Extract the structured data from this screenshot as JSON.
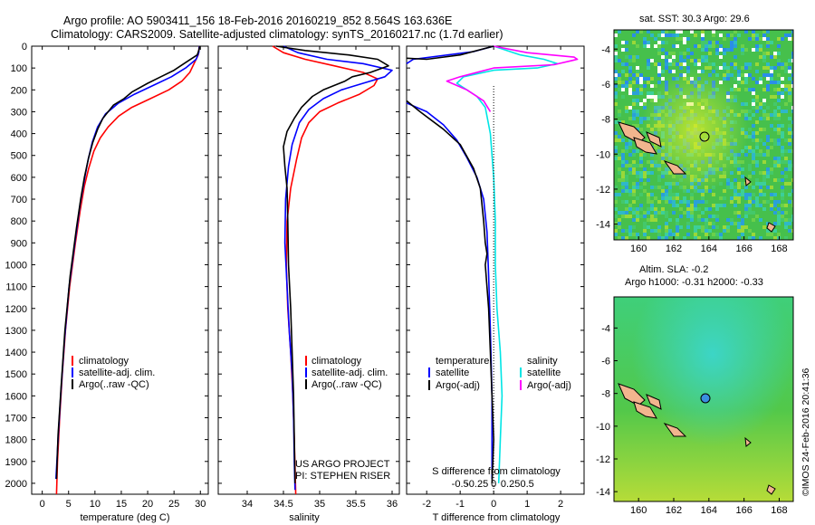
{
  "header": {
    "line1": "Argo profile: AO 5903411_156 18-Feb-2016 20160219_852 8.564S 163.636E",
    "line2": "Climatology: CARS2009. Satellite-adjusted climatology: synTS_20160217.nc (1.7d earlier)"
  },
  "colors": {
    "climatology": "#ff0000",
    "satellite": "#0000ff",
    "argo": "#000000",
    "sat_salinity": "#00e5e5",
    "argo_salinity": "#ff00ff"
  },
  "depth_axis": {
    "ylim": [
      0,
      2050
    ],
    "ticks": [
      "0",
      "100",
      "200",
      "300",
      "400",
      "500",
      "600",
      "700",
      "800",
      "900",
      "1000",
      "1100",
      "1200",
      "1300",
      "1400",
      "1500",
      "1600",
      "1700",
      "1800",
      "1900",
      "2000"
    ]
  },
  "credits": {
    "project": "US ARGO PROJECT",
    "pi": "PI: STEPHEN RISER",
    "imos": "©IMOS 24-Feb-2016 20:41:36"
  },
  "chart_data": [
    {
      "type": "line",
      "xlabel": "temperature (deg C)",
      "xlim": [
        -2,
        31.5
      ],
      "xticks": [
        "0",
        "5",
        "10",
        "15",
        "20",
        "25",
        "30"
      ],
      "legend": [
        "climatology",
        "satellite-adj. clim.",
        "Argo(..raw -QC)"
      ],
      "series": [
        {
          "name": "climatology",
          "color": "#ff0000",
          "points": [
            [
              29.8,
              0
            ],
            [
              29.6,
              40
            ],
            [
              29.0,
              70
            ],
            [
              28.0,
              120
            ],
            [
              26.5,
              160
            ],
            [
              24.0,
              200
            ],
            [
              20.5,
              240
            ],
            [
              17.0,
              280
            ],
            [
              14.5,
              320
            ],
            [
              12.5,
              370
            ],
            [
              11.0,
              420
            ],
            [
              9.8,
              480
            ],
            [
              8.8,
              560
            ],
            [
              8.0,
              640
            ],
            [
              7.2,
              750
            ],
            [
              6.3,
              900
            ],
            [
              5.2,
              1100
            ],
            [
              4.4,
              1300
            ],
            [
              3.8,
              1500
            ],
            [
              3.3,
              1700
            ],
            [
              2.9,
              1900
            ],
            [
              2.7,
              2050
            ]
          ]
        },
        {
          "name": "satellite-adj. clim.",
          "color": "#0000ff",
          "points": [
            [
              29.8,
              0
            ],
            [
              29.7,
              30
            ],
            [
              29.2,
              60
            ],
            [
              27.2,
              100
            ],
            [
              24.5,
              140
            ],
            [
              21.0,
              180
            ],
            [
              17.5,
              220
            ],
            [
              14.5,
              260
            ],
            [
              12.0,
              310
            ],
            [
              10.5,
              370
            ],
            [
              9.5,
              440
            ],
            [
              8.7,
              520
            ],
            [
              8.0,
              610
            ],
            [
              7.2,
              720
            ],
            [
              6.3,
              880
            ],
            [
              5.1,
              1100
            ],
            [
              4.2,
              1350
            ],
            [
              3.5,
              1600
            ],
            [
              3.0,
              1800
            ],
            [
              2.6,
              1980
            ]
          ]
        },
        {
          "name": "Argo(..raw -QC)",
          "color": "#000000",
          "points": [
            [
              29.9,
              0
            ],
            [
              29.7,
              20
            ],
            [
              29.4,
              40
            ],
            [
              27.5,
              70
            ],
            [
              25.0,
              110
            ],
            [
              22.5,
              140
            ],
            [
              20.0,
              170
            ],
            [
              17.0,
              210
            ],
            [
              15.5,
              240
            ],
            [
              13.5,
              270
            ],
            [
              11.5,
              330
            ],
            [
              10.5,
              380
            ],
            [
              9.6,
              440
            ],
            [
              8.8,
              510
            ],
            [
              8.0,
              600
            ],
            [
              7.3,
              700
            ],
            [
              6.5,
              830
            ],
            [
              5.3,
              1050
            ],
            [
              4.3,
              1300
            ],
            [
              3.6,
              1550
            ],
            [
              3.0,
              1780
            ],
            [
              2.7,
              1980
            ]
          ]
        }
      ]
    },
    {
      "type": "line",
      "xlabel": "salinity",
      "xlim": [
        33.6,
        36.1
      ],
      "xticks": [
        "34",
        "34.5",
        "35",
        "35.5",
        "36"
      ],
      "legend": [
        "climatology",
        "satellite-adj. clim.",
        "Argo(..raw -QC)"
      ],
      "series": [
        {
          "name": "climatology",
          "color": "#ff0000",
          "points": [
            [
              34.35,
              0
            ],
            [
              34.5,
              30
            ],
            [
              34.8,
              60
            ],
            [
              35.2,
              90
            ],
            [
              35.6,
              120
            ],
            [
              35.8,
              150
            ],
            [
              35.75,
              180
            ],
            [
              35.55,
              220
            ],
            [
              35.25,
              260
            ],
            [
              35.0,
              300
            ],
            [
              34.85,
              350
            ],
            [
              34.75,
              420
            ],
            [
              34.68,
              520
            ],
            [
              34.6,
              650
            ],
            [
              34.55,
              800
            ],
            [
              34.54,
              1000
            ],
            [
              34.56,
              1200
            ],
            [
              34.6,
              1400
            ],
            [
              34.63,
              1600
            ],
            [
              34.65,
              1800
            ],
            [
              34.67,
              2050
            ]
          ]
        },
        {
          "name": "satellite-adj. clim.",
          "color": "#0000ff",
          "points": [
            [
              34.5,
              0
            ],
            [
              34.7,
              30
            ],
            [
              35.1,
              60
            ],
            [
              35.6,
              80
            ],
            [
              36.0,
              110
            ],
            [
              35.9,
              140
            ],
            [
              35.6,
              170
            ],
            [
              35.3,
              200
            ],
            [
              35.05,
              240
            ],
            [
              34.85,
              290
            ],
            [
              34.72,
              350
            ],
            [
              34.62,
              450
            ],
            [
              34.57,
              550
            ],
            [
              34.53,
              700
            ],
            [
              34.52,
              900
            ],
            [
              34.55,
              1100
            ],
            [
              34.58,
              1300
            ],
            [
              34.62,
              1500
            ],
            [
              34.64,
              1700
            ],
            [
              34.65,
              1900
            ],
            [
              34.66,
              2030
            ]
          ]
        },
        {
          "name": "Argo(..raw -QC)",
          "color": "#000000",
          "points": [
            [
              34.4,
              0
            ],
            [
              34.8,
              20
            ],
            [
              35.4,
              40
            ],
            [
              35.8,
              60
            ],
            [
              35.95,
              90
            ],
            [
              35.7,
              120
            ],
            [
              35.45,
              140
            ],
            [
              35.35,
              160
            ],
            [
              35.05,
              200
            ],
            [
              34.9,
              230
            ],
            [
              34.75,
              280
            ],
            [
              34.65,
              330
            ],
            [
              34.55,
              390
            ],
            [
              34.5,
              460
            ],
            [
              34.52,
              550
            ],
            [
              34.55,
              650
            ],
            [
              34.56,
              800
            ],
            [
              34.57,
              1000
            ],
            [
              34.6,
              1200
            ],
            [
              34.62,
              1400
            ],
            [
              34.64,
              1600
            ],
            [
              34.65,
              1800
            ],
            [
              34.66,
              2000
            ]
          ]
        }
      ]
    },
    {
      "type": "line",
      "xlabel": "T difference from climatology",
      "xlabel_top": "S difference from climatology",
      "xlim": [
        -2.6,
        2.7
      ],
      "xticks": [
        "-2",
        "-1",
        "0",
        "1",
        "2"
      ],
      "xticks_top": [
        "-0.5",
        "-0.25",
        "0",
        "0.25",
        "0.5"
      ],
      "legend": [
        "temperature",
        "satellite",
        "Argo(-adj)",
        "salinity",
        "satellite",
        "Argo(-adj)"
      ],
      "series": [
        {
          "name": "satellite",
          "color": "#0000ff",
          "points": [
            [
              0.0,
              0
            ],
            [
              -0.6,
              25
            ],
            [
              -2.4,
              60
            ],
            [
              -2.6,
              80
            ]
          ]
        },
        {
          "name": "satellite",
          "color": "#0000ff",
          "points": [
            [
              -2.6,
              260
            ],
            [
              -2.0,
              300
            ],
            [
              -1.5,
              360
            ],
            [
              -1.1,
              430
            ],
            [
              -0.8,
              510
            ],
            [
              -0.5,
              600
            ],
            [
              -0.3,
              700
            ],
            [
              -0.2,
              850
            ],
            [
              -0.15,
              1050
            ],
            [
              -0.1,
              1300
            ],
            [
              -0.05,
              1600
            ],
            [
              -0.05,
              1980
            ]
          ]
        },
        {
          "name": "Argo(-adj)",
          "color": "#000000",
          "points": [
            [
              0.0,
              0
            ],
            [
              -1.0,
              40
            ],
            [
              -2.0,
              60
            ],
            [
              -2.6,
              55
            ]
          ]
        },
        {
          "name": "Argo(-adj)",
          "color": "#000000",
          "points": [
            [
              -2.6,
              250
            ],
            [
              -2.2,
              300
            ],
            [
              -1.5,
              380
            ],
            [
              -1.0,
              450
            ],
            [
              -0.6,
              560
            ],
            [
              -0.4,
              650
            ],
            [
              -0.3,
              800
            ],
            [
              -0.25,
              900
            ],
            [
              -0.2,
              950
            ],
            [
              -0.25,
              1000
            ],
            [
              -0.15,
              1200
            ],
            [
              -0.1,
              1400
            ],
            [
              -0.05,
              1600
            ],
            [
              0.0,
              1800
            ],
            [
              -0.05,
              2000
            ]
          ]
        },
        {
          "name": "satellite",
          "color": "#00e5e5",
          "points": [
            [
              0.0,
              0
            ],
            [
              0.8,
              40
            ],
            [
              1.5,
              60
            ],
            [
              1.9,
              80
            ],
            [
              1.3,
              100
            ],
            [
              0.0,
              110
            ],
            [
              -0.9,
              140
            ],
            [
              -1.1,
              170
            ],
            [
              -0.5,
              230
            ],
            [
              -0.25,
              280
            ],
            [
              -0.1,
              400
            ],
            [
              0.0,
              600
            ],
            [
              0.05,
              800
            ],
            [
              0.05,
              1000
            ],
            [
              0.1,
              1200
            ],
            [
              0.2,
              1400
            ],
            [
              0.25,
              1600
            ],
            [
              0.2,
              1800
            ],
            [
              0.15,
              2000
            ]
          ]
        },
        {
          "name": "Argo(-adj)",
          "color": "#ff00ff",
          "points": [
            [
              0.0,
              0
            ],
            [
              1.0,
              30
            ],
            [
              2.4,
              50
            ],
            [
              2.5,
              60
            ],
            [
              1.8,
              85
            ],
            [
              0.0,
              100
            ],
            [
              -1.0,
              140
            ],
            [
              -1.4,
              160
            ],
            [
              -0.8,
              200
            ],
            [
              -0.3,
              250
            ],
            [
              -0.1,
              300
            ]
          ]
        }
      ]
    }
  ],
  "maps": {
    "top": {
      "title": "sat. SST: 30.3 Argo: 29.6",
      "xticks": [
        "160",
        "162",
        "164",
        "166",
        "168"
      ],
      "yticks": [
        "-4",
        "-6",
        "-8",
        "-10",
        "-12",
        "-14"
      ]
    },
    "bottom": {
      "title1": "Altim. SLA: -0.2",
      "title2": "Argo h1000: -0.31 h2000: -0.33",
      "xticks": [
        "160",
        "162",
        "164",
        "166",
        "168"
      ],
      "yticks": [
        "-4",
        "-6",
        "-8",
        "-10",
        "-12",
        "-14"
      ]
    }
  }
}
